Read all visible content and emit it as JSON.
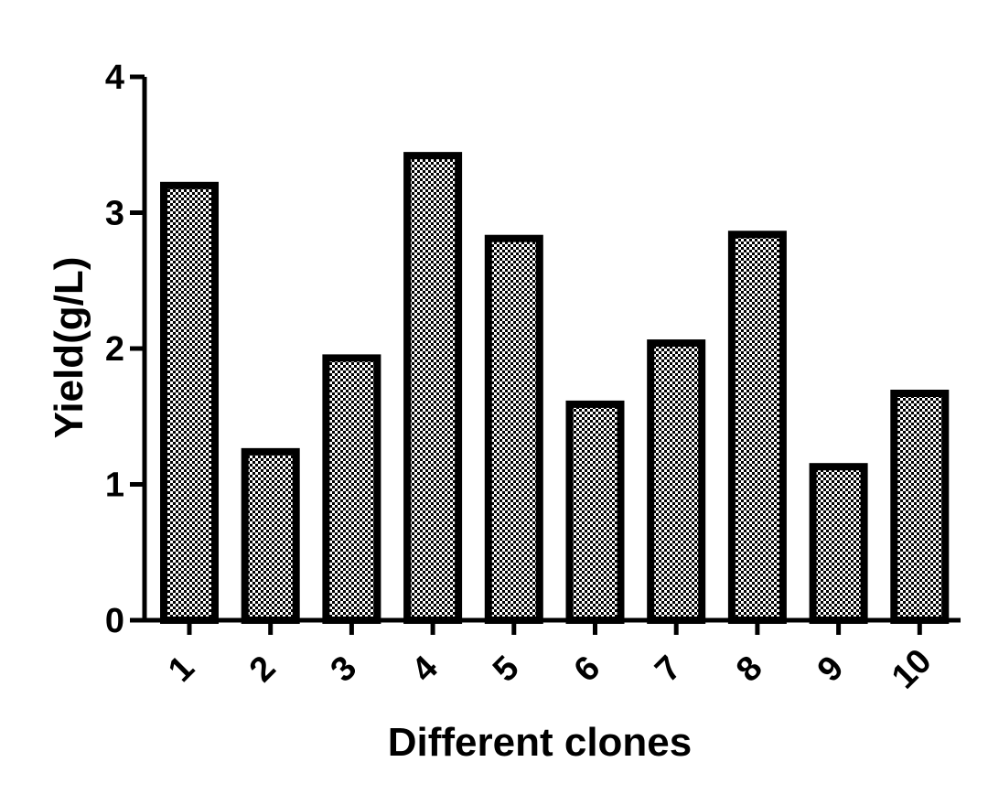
{
  "chart_data": {
    "type": "bar",
    "title": "",
    "xlabel": "Different clones",
    "ylabel": "Yield(g/L)",
    "categories": [
      "1",
      "2",
      "3",
      "4",
      "5",
      "6",
      "7",
      "8",
      "9",
      "10"
    ],
    "values": [
      3.2,
      1.24,
      1.93,
      3.42,
      2.81,
      1.59,
      2.04,
      2.84,
      1.13,
      1.67
    ],
    "ylim": [
      0,
      4
    ],
    "yticks": [
      "0",
      "1",
      "2",
      "3",
      "4"
    ],
    "grid": false,
    "legend": "none",
    "bar_pattern": "checkered",
    "colors": {
      "bar_edge": "#000000",
      "pattern_dark": "#000000",
      "pattern_light": "#ffffff"
    }
  }
}
